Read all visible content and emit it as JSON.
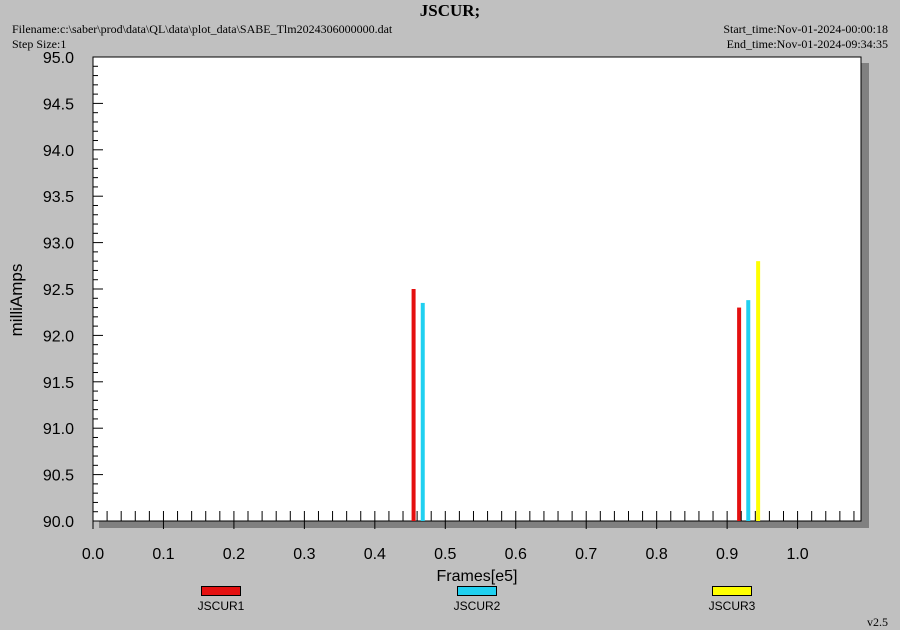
{
  "header": {
    "title": "JSCUR;",
    "filename": "Filename:c:\\saber\\prod\\data\\QL\\data\\plot_data\\SABE_Tlm2024306000000.dat",
    "step_size": "Step Size:1",
    "start_time": "Start_time:Nov-01-2024-00:00:18",
    "end_time": "End_time:Nov-01-2024-09:34:35",
    "version": "v2.5"
  },
  "chart_data": {
    "type": "bar",
    "title": "JSCUR;",
    "xlabel": "Frames[e5]",
    "ylabel": "milliAmps",
    "xlim": [
      0.0,
      1.09
    ],
    "ylim": [
      90.0,
      95.0
    ],
    "x_ticks": [
      "0.0",
      "0.1",
      "0.2",
      "0.3",
      "0.4",
      "0.5",
      "0.6",
      "0.7",
      "0.8",
      "0.9",
      "1.0"
    ],
    "y_ticks": [
      "90.0",
      "90.5",
      "91.0",
      "91.5",
      "92.0",
      "92.5",
      "93.0",
      "93.5",
      "94.0",
      "94.5",
      "95.0"
    ],
    "legend_position": "bottom",
    "grid": false,
    "series": [
      {
        "name": "JSCUR1",
        "color": "#e41010",
        "points": [
          {
            "x": 0.455,
            "y": 92.5
          },
          {
            "x": 0.917,
            "y": 92.3
          }
        ]
      },
      {
        "name": "JSCUR2",
        "color": "#20d0f0",
        "points": [
          {
            "x": 0.468,
            "y": 92.35
          },
          {
            "x": 0.93,
            "y": 92.38
          }
        ]
      },
      {
        "name": "JSCUR3",
        "color": "#ffff00",
        "points": [
          {
            "x": 0.944,
            "y": 92.8
          }
        ]
      }
    ]
  }
}
